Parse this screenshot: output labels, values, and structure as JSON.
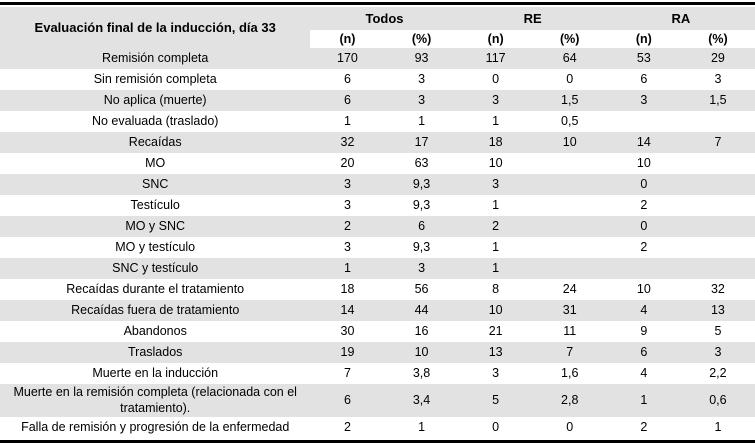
{
  "colors": {
    "row_shade": "#e2e2e2",
    "rule": "#000000",
    "text": "#000000",
    "background": "#ffffff"
  },
  "table": {
    "corner_header": "Evaluación final de la inducción, día 33",
    "column_groups": [
      "Todos",
      "RE",
      "RA"
    ],
    "subheaders": [
      "(n)",
      "(%)",
      "(n)",
      "(%)",
      "(n)",
      "(%)"
    ],
    "rows": [
      {
        "label": "Remisión completa",
        "values": [
          "170",
          "93",
          "117",
          "64",
          "53",
          "29"
        ]
      },
      {
        "label": "Sin remisión completa",
        "values": [
          "6",
          "3",
          "0",
          "0",
          "6",
          "3"
        ]
      },
      {
        "label": "No aplica (muerte)",
        "values": [
          "6",
          "3",
          "3",
          "1,5",
          "3",
          "1,5"
        ]
      },
      {
        "label": "No evaluada (traslado)",
        "values": [
          "1",
          "1",
          "1",
          "0,5",
          "",
          ""
        ]
      },
      {
        "label": "Recaídas",
        "values": [
          "32",
          "17",
          "18",
          "10",
          "14",
          "7"
        ]
      },
      {
        "label": "MO",
        "values": [
          "20",
          "63",
          "10",
          "",
          "10",
          ""
        ]
      },
      {
        "label": "SNC",
        "values": [
          "3",
          "9,3",
          "3",
          "",
          "0",
          ""
        ]
      },
      {
        "label": "Testículo",
        "values": [
          "3",
          "9,3",
          "1",
          "",
          "2",
          ""
        ]
      },
      {
        "label": "MO y SNC",
        "values": [
          "2",
          "6",
          "2",
          "",
          "0",
          ""
        ]
      },
      {
        "label": "MO y testículo",
        "values": [
          "3",
          "9,3",
          "1",
          "",
          "2",
          ""
        ]
      },
      {
        "label": "SNC y testículo",
        "values": [
          "1",
          "3",
          "1",
          "",
          "",
          ""
        ]
      },
      {
        "label": "Recaídas durante el tratamiento",
        "values": [
          "18",
          "56",
          "8",
          "24",
          "10",
          "32"
        ]
      },
      {
        "label": "Recaídas fuera de tratamiento",
        "values": [
          "14",
          "44",
          "10",
          "31",
          "4",
          "13"
        ]
      },
      {
        "label": "Abandonos",
        "values": [
          "30",
          "16",
          "21",
          "11",
          "9",
          "5"
        ]
      },
      {
        "label": "Traslados",
        "values": [
          "19",
          "10",
          "13",
          "7",
          "6",
          "3"
        ]
      },
      {
        "label": "Muerte en la inducción",
        "values": [
          "7",
          "3,8",
          "3",
          "1,6",
          "4",
          "2,2"
        ]
      },
      {
        "label": "Muerte en la remisión completa (relacionada con el tratamiento).",
        "values": [
          "6",
          "3,4",
          "5",
          "2,8",
          "1",
          "0,6"
        ]
      },
      {
        "label": "Falla de remisión y progresión de la enfermedad",
        "values": [
          "2",
          "1",
          "0",
          "0",
          "2",
          "1"
        ]
      }
    ]
  }
}
